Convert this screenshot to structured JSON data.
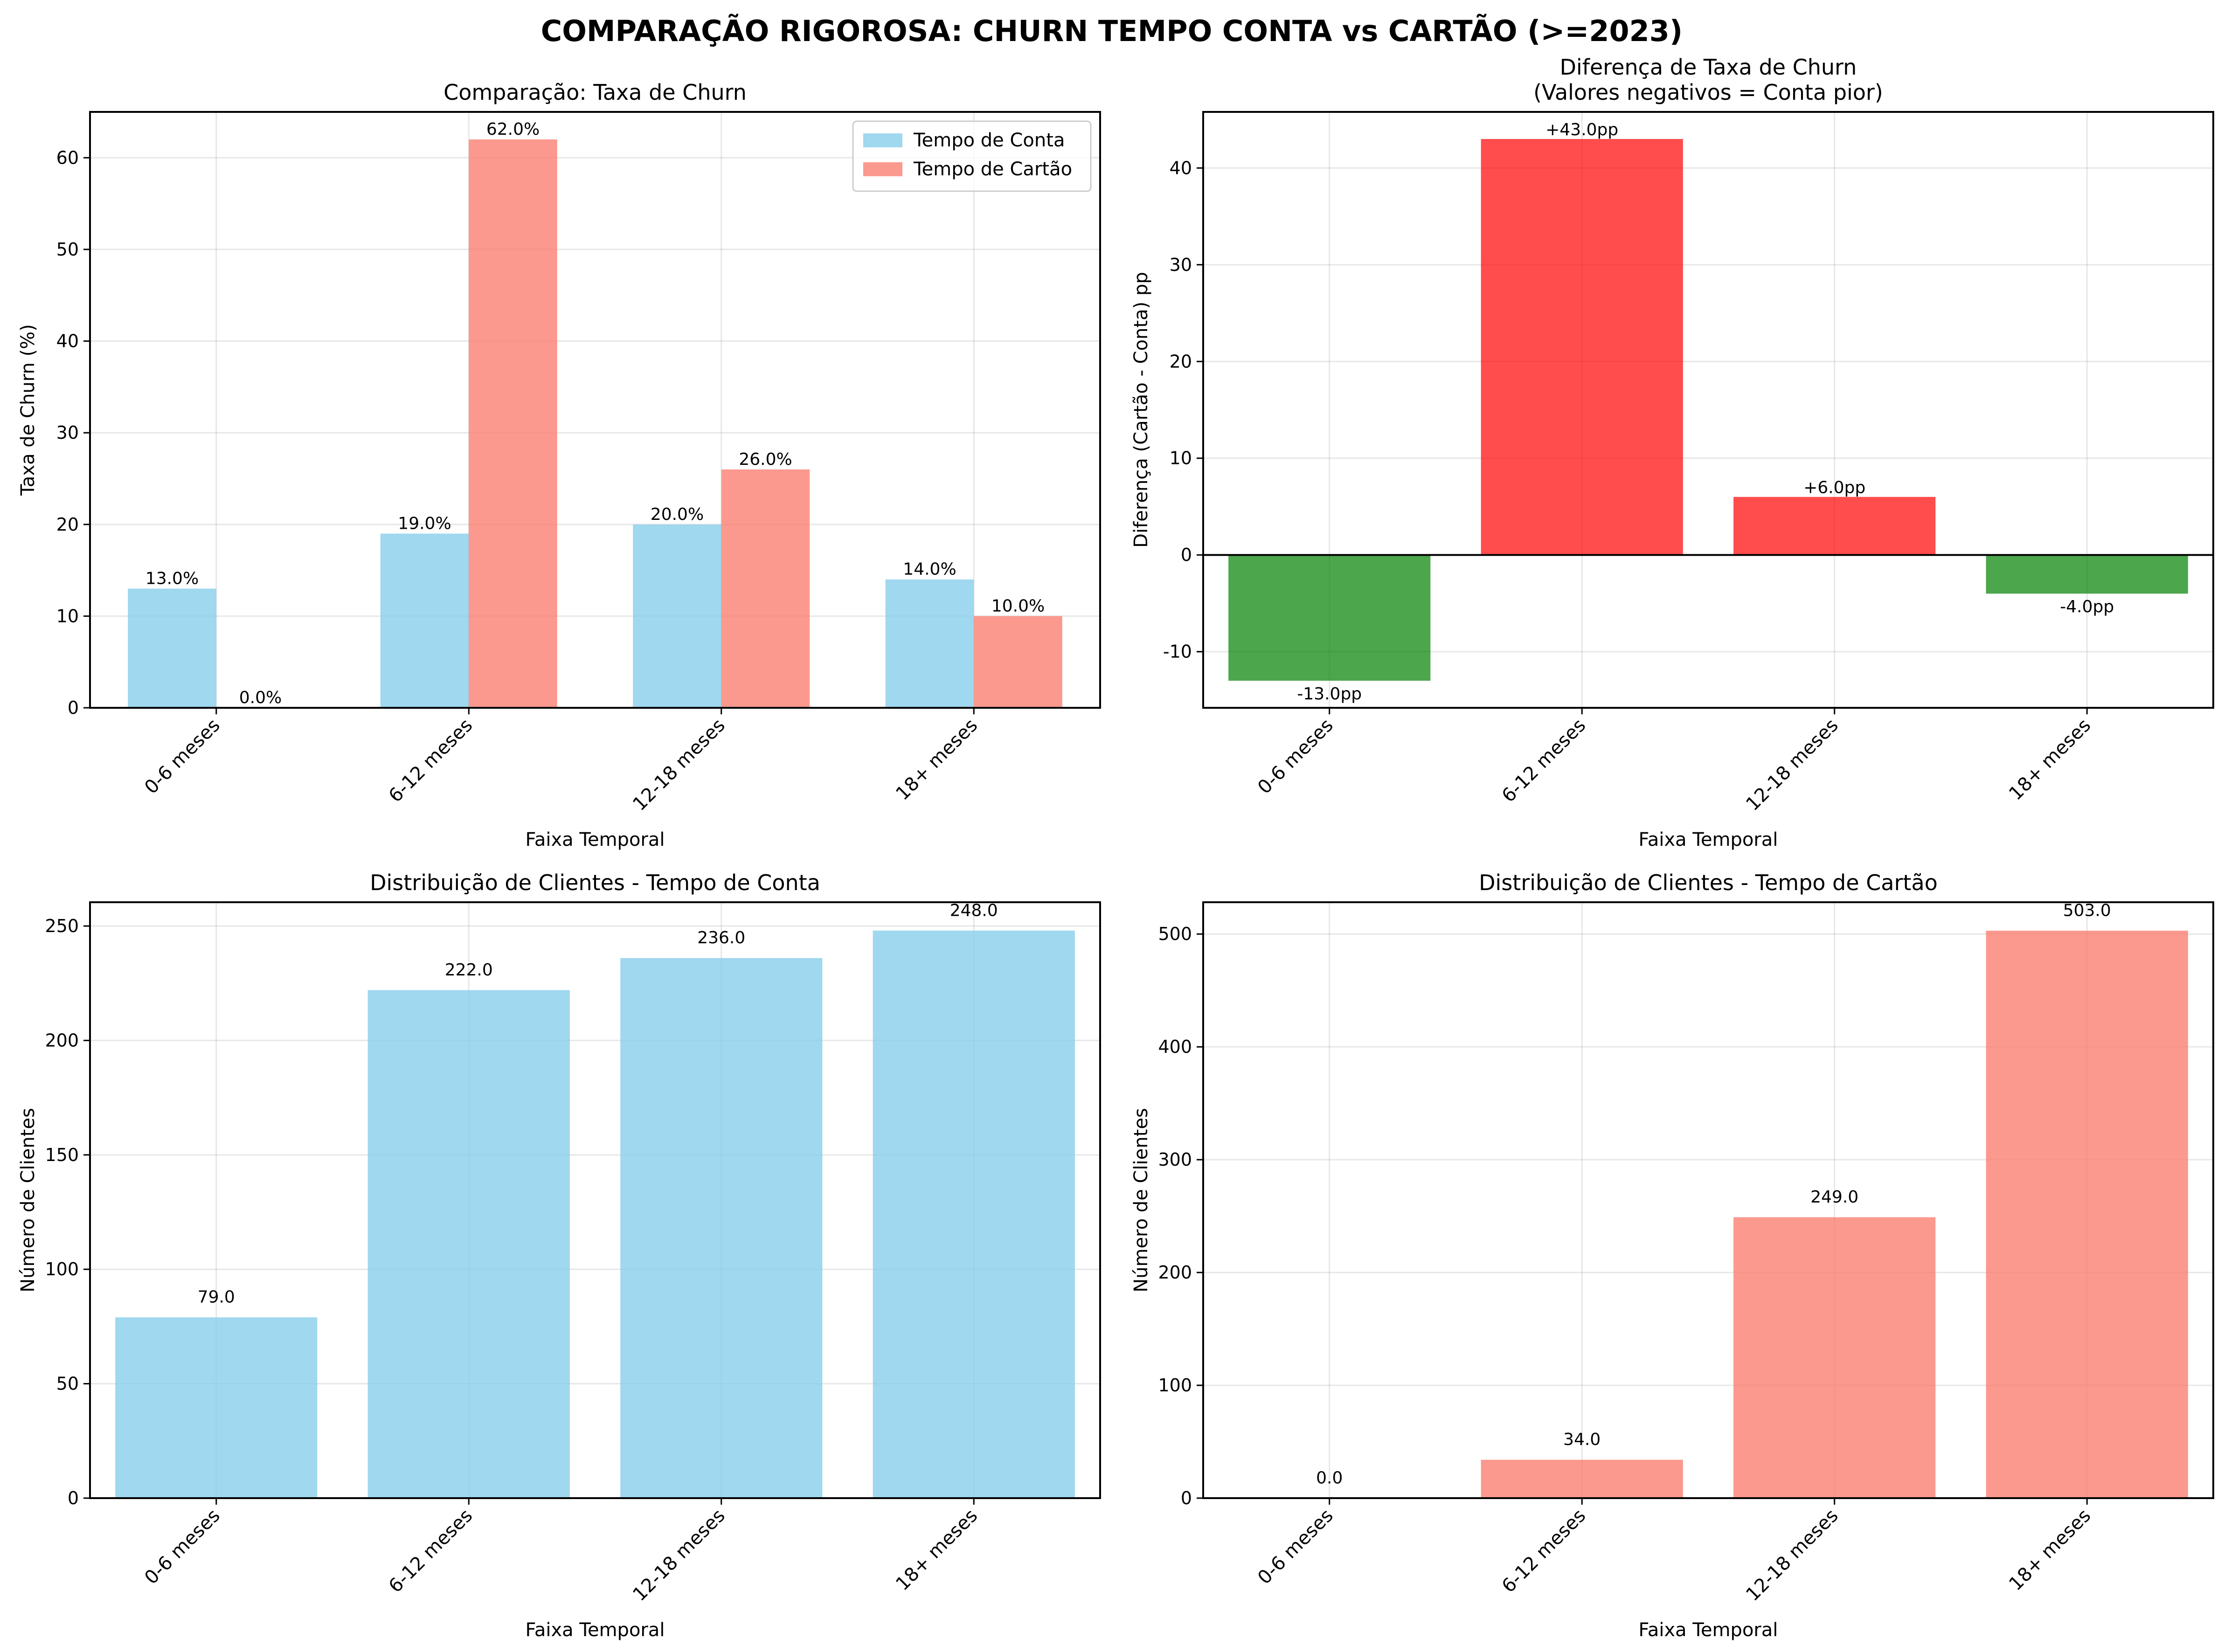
{
  "figure": {
    "title": "COMPARAÇÃO RIGOROSA: CHURN TEMPO CONTA vs CARTÃO (>=2023)"
  },
  "colors": {
    "conta": "#87CEEB",
    "cartao": "#FA8072",
    "positive_diff": "#FF0000",
    "negative_diff": "#008000",
    "grid": "#b0b0b0",
    "axis": "#000000"
  },
  "chart_data": [
    {
      "type": "bar",
      "title": "Comparação: Taxa de Churn",
      "xlabel": "Faixa Temporal",
      "ylabel": "Taxa de Churn (%)",
      "categories": [
        "0-6 meses",
        "6-12 meses",
        "12-18 meses",
        "18+ meses"
      ],
      "series": [
        {
          "name": "Tempo de Conta",
          "values": [
            13.0,
            19.0,
            20.0,
            14.0
          ],
          "labels": [
            "13.0%",
            "19.0%",
            "20.0%",
            "14.0%"
          ]
        },
        {
          "name": "Tempo de Cartão",
          "values": [
            0.0,
            62.0,
            26.0,
            10.0
          ],
          "labels": [
            "0.0%",
            "62.0%",
            "26.0%",
            "10.0%"
          ]
        }
      ],
      "ylim": [
        0,
        65
      ],
      "yticks": [
        0,
        10,
        20,
        30,
        40,
        50,
        60
      ],
      "grid": true,
      "legend": "top-right"
    },
    {
      "type": "bar",
      "title": "Diferença de Taxa de Churn",
      "subtitle": "(Valores negativos = Conta pior)",
      "xlabel": "Faixa Temporal",
      "ylabel": "Diferença (Cartão - Conta) pp",
      "categories": [
        "0-6 meses",
        "6-12 meses",
        "12-18 meses",
        "18+ meses"
      ],
      "values": [
        -13.0,
        43.0,
        6.0,
        -4.0
      ],
      "labels": [
        "-13.0pp",
        "+43.0pp",
        "+6.0pp",
        "-4.0pp"
      ],
      "ylim": [
        -15.8,
        45.8
      ],
      "yticks": [
        -10,
        0,
        10,
        20,
        30,
        40
      ],
      "grid": true,
      "zero_line": true
    },
    {
      "type": "bar",
      "title": "Distribuição de Clientes - Tempo de Conta",
      "xlabel": "Faixa Temporal",
      "ylabel": "Número de Clientes",
      "categories": [
        "0-6 meses",
        "6-12 meses",
        "12-18 meses",
        "18+ meses"
      ],
      "values": [
        79,
        222,
        236,
        248
      ],
      "labels": [
        "79.0",
        "222.0",
        "236.0",
        "248.0"
      ],
      "ylim": [
        0,
        260.4
      ],
      "yticks": [
        0,
        50,
        100,
        150,
        200,
        250
      ],
      "grid": true
    },
    {
      "type": "bar",
      "title": "Distribuição de Clientes - Tempo de Cartão",
      "xlabel": "Faixa Temporal",
      "ylabel": "Número de Clientes",
      "categories": [
        "0-6 meses",
        "6-12 meses",
        "12-18 meses",
        "18+ meses"
      ],
      "values": [
        0,
        34,
        249,
        503
      ],
      "labels": [
        "0.0",
        "34.0",
        "249.0",
        "503.0"
      ],
      "ylim": [
        0,
        528.2
      ],
      "yticks": [
        0,
        100,
        200,
        300,
        400,
        500
      ],
      "grid": true
    }
  ]
}
